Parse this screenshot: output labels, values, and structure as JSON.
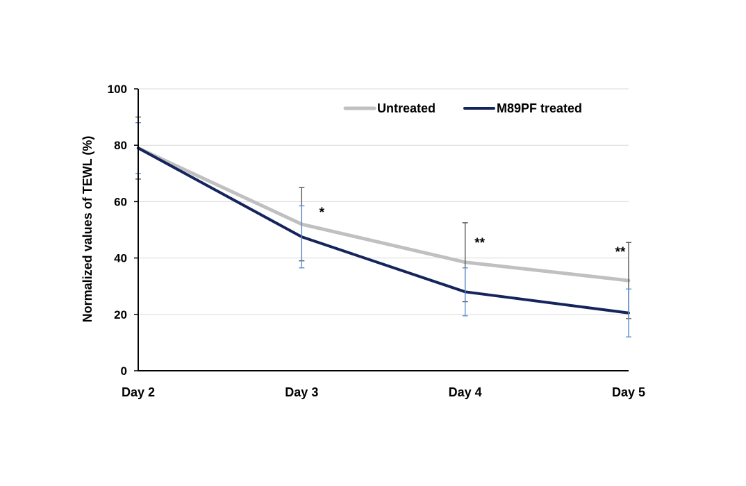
{
  "chart_data": {
    "type": "line",
    "title": "",
    "xlabel": "",
    "ylabel": "Normalized values of TEWL (%)",
    "categories": [
      "Day 2",
      "Day 3",
      "Day 4",
      "Day 5"
    ],
    "ylim": [
      0,
      100
    ],
    "yticks": [
      "0",
      "20",
      "40",
      "60",
      "80",
      "100"
    ],
    "grid": true,
    "legend_position": "top-right",
    "series": [
      {
        "name": "Untreated",
        "color": "#c0c0c0",
        "values": [
          79,
          52,
          38.5,
          32
        ],
        "error": [
          11,
          13,
          14,
          13.5
        ]
      },
      {
        "name": "M89PF treated",
        "color": "#14245c",
        "values": [
          79,
          47.5,
          28,
          20.5
        ],
        "error": [
          9,
          11,
          8.5,
          8.5
        ]
      }
    ],
    "error_bar_colors": [
      "#555555",
      "#5b8fd0"
    ],
    "annotations": [
      "",
      "*",
      "**",
      "**"
    ]
  }
}
